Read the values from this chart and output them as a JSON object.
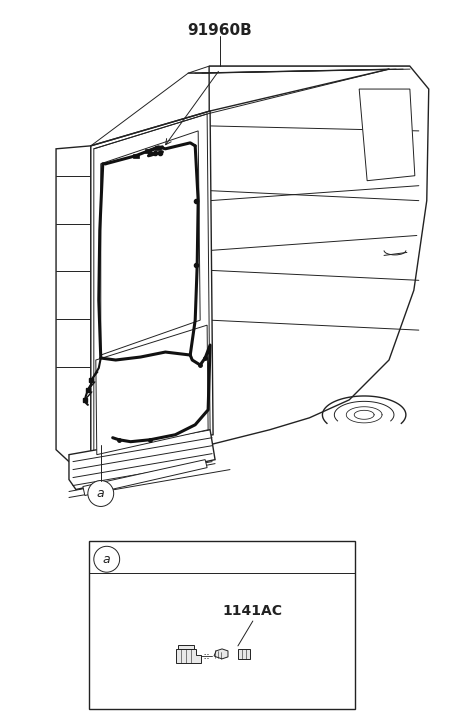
{
  "background_color": "#ffffff",
  "part_label_main": "91960B",
  "part_label_sub": "1141AC",
  "callout_label": "a",
  "figsize": [
    4.52,
    7.27
  ],
  "dpi": 100,
  "line_color": "#222222",
  "wire_color": "#111111"
}
